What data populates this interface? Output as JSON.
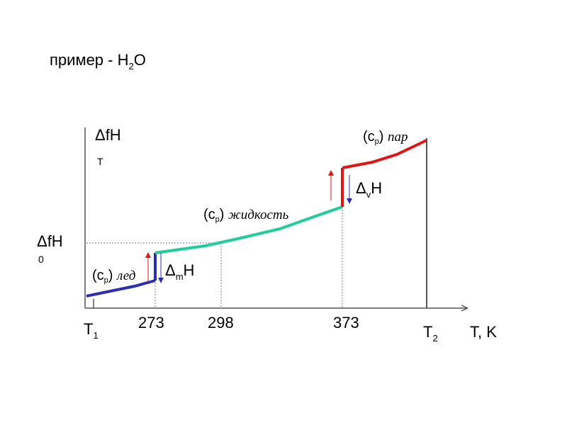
{
  "title": {
    "text": "пример - H",
    "sub": "2",
    "tail": "O"
  },
  "y_axis": {
    "label_main": "ΔfH",
    "label_sub": "T",
    "ref_label_main": "ΔfH",
    "ref_label_sub": "0"
  },
  "x_axis": {
    "label": "T, K",
    "ticks": [
      "273",
      "298",
      "373"
    ],
    "t1": {
      "main": "T",
      "sub": "1"
    },
    "t2": {
      "main": "T",
      "sub": "2"
    }
  },
  "segments": [
    {
      "name": "ice",
      "label_cp": "(c",
      "label_sub": "p",
      "label_close": ")",
      "label_word": "лед",
      "color": "#2a2fb0"
    },
    {
      "name": "liquid",
      "label_cp": "(c",
      "label_sub": "p",
      "label_close": ")",
      "label_word": "жидкость",
      "color": "#1fcc9a"
    },
    {
      "name": "vapor",
      "label_cp": "(c",
      "label_sub": "p",
      "label_close": ")",
      "label_word": "пар",
      "color": "#e01515"
    }
  ],
  "transitions": [
    {
      "name": "melting",
      "label_main": "Δ",
      "label_sub": "m",
      "label_tail": "H"
    },
    {
      "name": "vaporization",
      "label_main": "Δ",
      "label_sub": "v",
      "label_tail": "H"
    }
  ],
  "colors": {
    "axis": "#555555",
    "ice": "#2a2fb0",
    "liquid": "#1fcc9a",
    "vapor": "#e01515",
    "arrow_up": "#e01515",
    "arrow_down": "#2a2fb0"
  }
}
